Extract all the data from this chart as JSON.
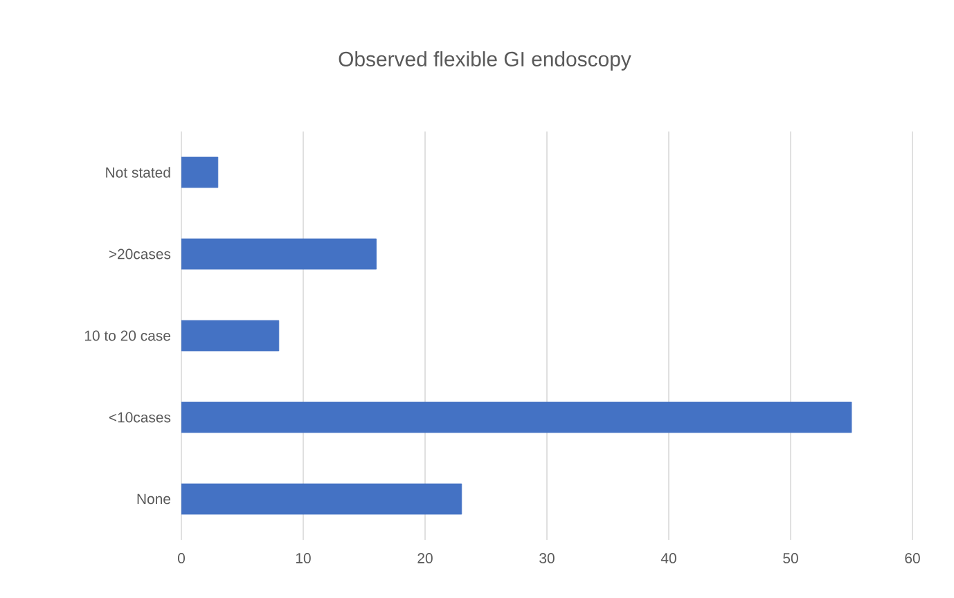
{
  "chart_data": {
    "type": "bar",
    "orientation": "horizontal",
    "title": "Observed flexible GI endoscopy",
    "categories": [
      "Not stated",
      ">20cases",
      "10 to 20 case",
      "<10cases",
      "None"
    ],
    "values": [
      3,
      16,
      8,
      55,
      23
    ],
    "color": "#4472c4",
    "xlim": [
      0,
      60
    ],
    "xticks": [
      0,
      10,
      20,
      30,
      40,
      50,
      60
    ],
    "grid": "x"
  }
}
